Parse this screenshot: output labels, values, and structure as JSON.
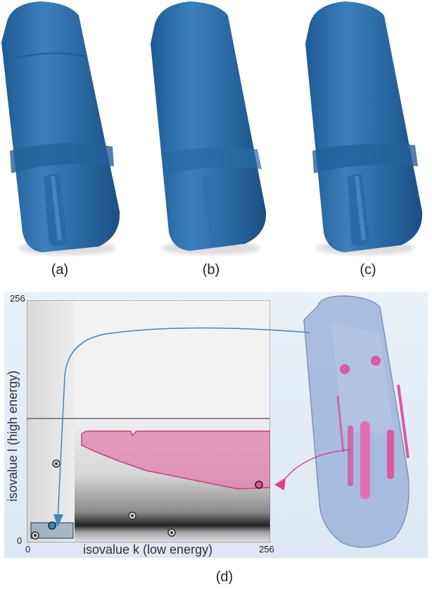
{
  "panels": [
    {
      "caption": "(a)",
      "color": "#2f6fa8"
    },
    {
      "caption": "(b)",
      "color": "#3576ad"
    },
    {
      "caption": "(c)",
      "color": "#2f6fa8"
    }
  ],
  "histogram": {
    "caption": "(d)",
    "x_axis_label": "isovalue k (low energy)",
    "y_axis_label": "isovalue l (high energy)",
    "x_ticks": [
      "0",
      "256"
    ],
    "y_ticks": [
      "256",
      "0"
    ],
    "selection_color": "#d8548f",
    "material_arrow_color": "#3f86bd",
    "metal_arrow_color": "#e0418f"
  }
}
